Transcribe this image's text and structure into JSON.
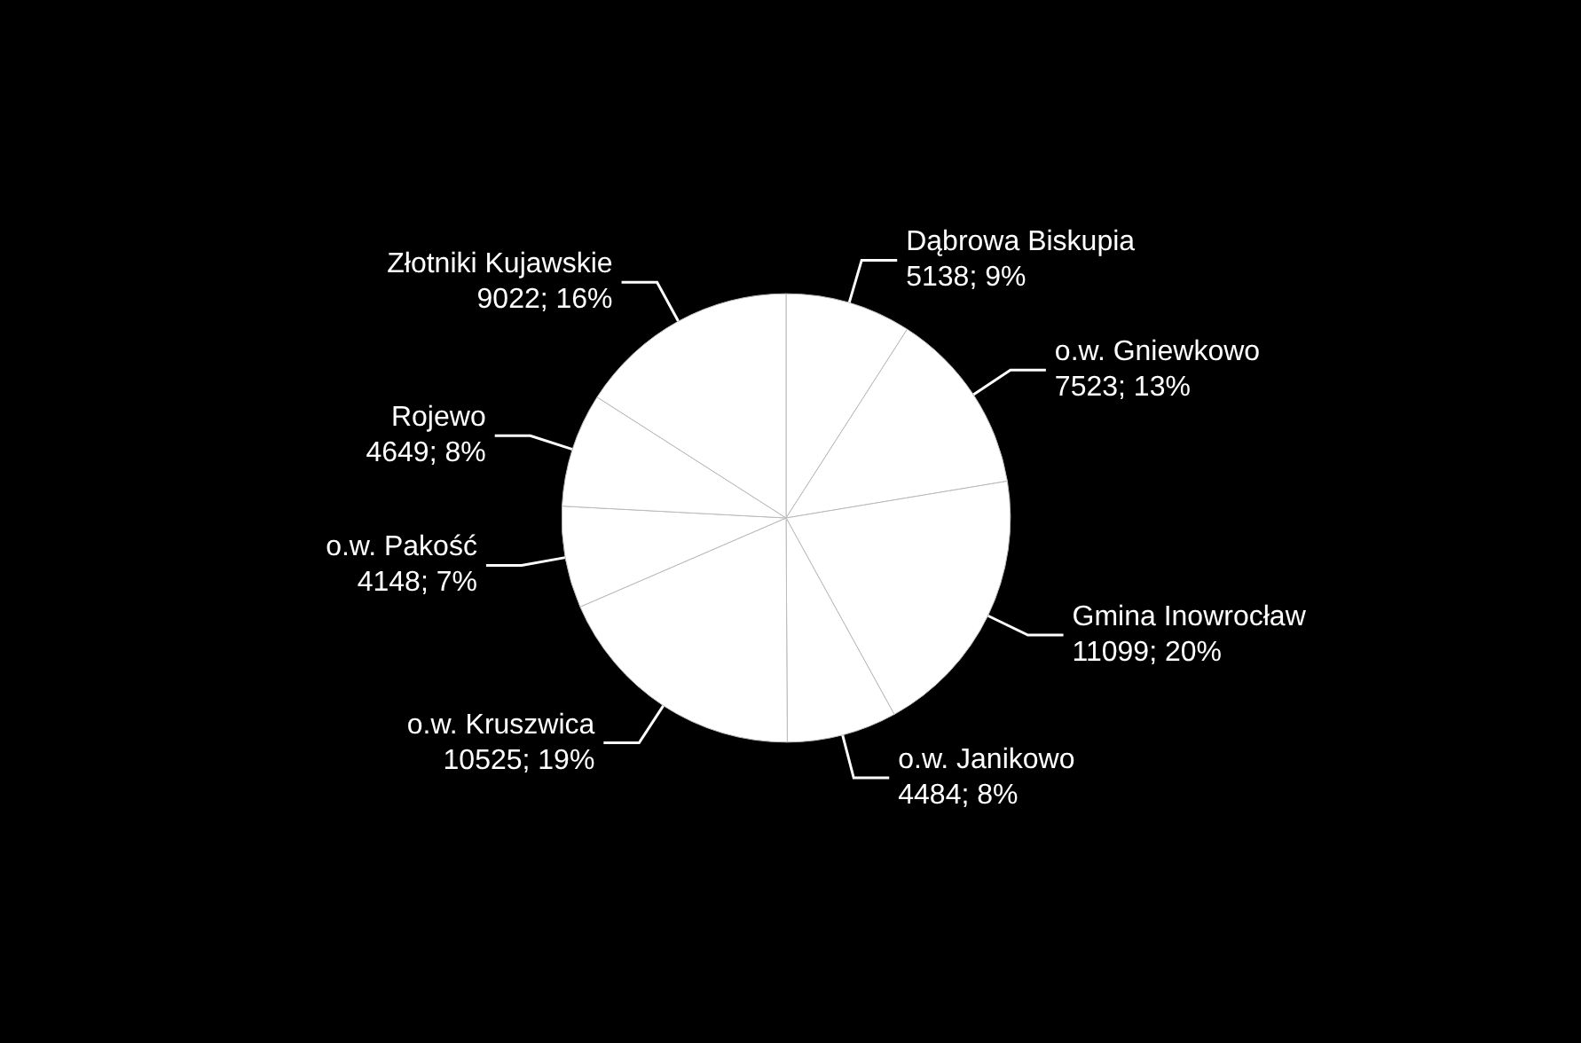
{
  "chart_data": {
    "type": "pie",
    "categories": [
      "Dąbrowa Biskupia",
      "o.w. Gniewkowo",
      "Gmina Inowrocław",
      "o.w. Janikowo",
      "o.w. Kruszwica",
      "o.w. Pakość",
      "Rojewo",
      "Złotniki Kujawskie"
    ],
    "values": [
      5138,
      7523,
      11099,
      4484,
      10525,
      4148,
      4649,
      9022
    ],
    "value_labels": [
      "5138; 9%",
      "7523; 13%",
      "11099; 20%",
      "4484; 8%",
      "10525; 19%",
      "4148; 7%",
      "4649; 8%",
      "9022; 16%"
    ],
    "colors": [
      "#ffffff",
      "#ffffff",
      "#ffffff",
      "#ffffff",
      "#ffffff",
      "#ffffff",
      "#ffffff",
      "#ffffff"
    ],
    "legend": false
  }
}
